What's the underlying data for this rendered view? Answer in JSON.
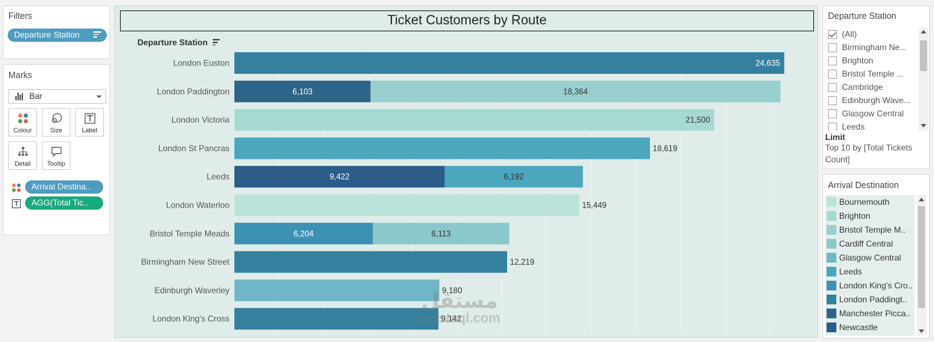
{
  "filters": {
    "title": "Filters",
    "pill": "Departure Station"
  },
  "marks": {
    "title": "Marks",
    "mark_type": "Bar",
    "buttons": [
      "Colour",
      "Size",
      "Label",
      "Detail",
      "Tooltip"
    ],
    "encodings": [
      {
        "type": "color",
        "label": "Arrival Destina.."
      },
      {
        "type": "label",
        "label": "AGG(Total Tic.."
      }
    ]
  },
  "chart": {
    "title": "Ticket Customers by Route",
    "axis_header": "Departure Station"
  },
  "chart_data": {
    "type": "bar",
    "orientation": "horizontal",
    "stacked": true,
    "title": "Ticket Customers by Route",
    "ylabel": "Departure Station",
    "xlim": [
      0,
      25000
    ],
    "grid": true,
    "rows": [
      {
        "category": "London Euston",
        "segments": [
          {
            "value": 24635,
            "label": "24,635",
            "color": "#35809f"
          }
        ]
      },
      {
        "category": "London Paddington",
        "segments": [
          {
            "value": 6103,
            "label": "6,103",
            "color": "#2c6588"
          },
          {
            "value": 18364,
            "label": "18,364",
            "color": "#99cfcf"
          }
        ]
      },
      {
        "category": "London Victoria",
        "segments": [
          {
            "value": 21500,
            "label": "21,500",
            "color": "#a7d9d3"
          }
        ]
      },
      {
        "category": "London St Pancras",
        "segments": [
          {
            "value": 18619,
            "label": "18,619",
            "color": "#4ba6be"
          }
        ]
      },
      {
        "category": "Leeds",
        "segments": [
          {
            "value": 9422,
            "label": "9,422",
            "color": "#2c5c89"
          },
          {
            "value": 6192,
            "label": "6,192",
            "color": "#4ba6be"
          }
        ]
      },
      {
        "category": "London Waterloo",
        "segments": [
          {
            "value": 15449,
            "label": "15,449",
            "color": "#bce3d9"
          }
        ]
      },
      {
        "category": "Bristol Temple Meads",
        "segments": [
          {
            "value": 6204,
            "label": "6,204",
            "color": "#3d92b4"
          },
          {
            "value": 6113,
            "label": "6,113",
            "color": "#8bc8cb"
          }
        ]
      },
      {
        "category": "Birmingham New Street",
        "segments": [
          {
            "value": 12219,
            "label": "12,219",
            "color": "#35809f"
          }
        ]
      },
      {
        "category": "Edinburgh Waverley",
        "segments": [
          {
            "value": 9180,
            "label": "9,180",
            "color": "#6fb7c6"
          }
        ]
      },
      {
        "category": "London King's Cross",
        "segments": [
          {
            "value": 9142,
            "label": "9,142",
            "color": "#35809f"
          }
        ]
      }
    ]
  },
  "departure_filter": {
    "title": "Departure Station",
    "items": [
      {
        "label": "(All)",
        "checked": true
      },
      {
        "label": "Birmingham Ne...",
        "checked": false
      },
      {
        "label": "Brighton",
        "checked": false
      },
      {
        "label": "Bristol Temple ...",
        "checked": false
      },
      {
        "label": "Cambridge",
        "checked": false
      },
      {
        "label": "Edinburgh Wave...",
        "checked": false
      },
      {
        "label": "Glasgow Central",
        "checked": false
      },
      {
        "label": "Leeds",
        "checked": false
      }
    ],
    "limit_title": "Limit",
    "limit_text": "Top 10 by [Total Tickets Count]"
  },
  "arrival_legend": {
    "title": "Arrival Destination",
    "items": [
      {
        "label": "Bournemouth",
        "color": "#bce3d9"
      },
      {
        "label": "Brighton",
        "color": "#a7d9d3"
      },
      {
        "label": "Bristol Temple M..",
        "color": "#99cfcf"
      },
      {
        "label": "Cardiff Central",
        "color": "#8bc8cb"
      },
      {
        "label": "Glasgow Central",
        "color": "#6fb7c6"
      },
      {
        "label": "Leeds",
        "color": "#4ba6be"
      },
      {
        "label": "London King's Cro..",
        "color": "#3d92b4"
      },
      {
        "label": "London Paddingt..",
        "color": "#35809f"
      },
      {
        "label": "Manchester Picca..",
        "color": "#2c6588"
      },
      {
        "label": "Newcastle",
        "color": "#2c5c89"
      }
    ]
  },
  "watermark": {
    "arabic": "مستقل",
    "latin": "mostaql.com"
  }
}
